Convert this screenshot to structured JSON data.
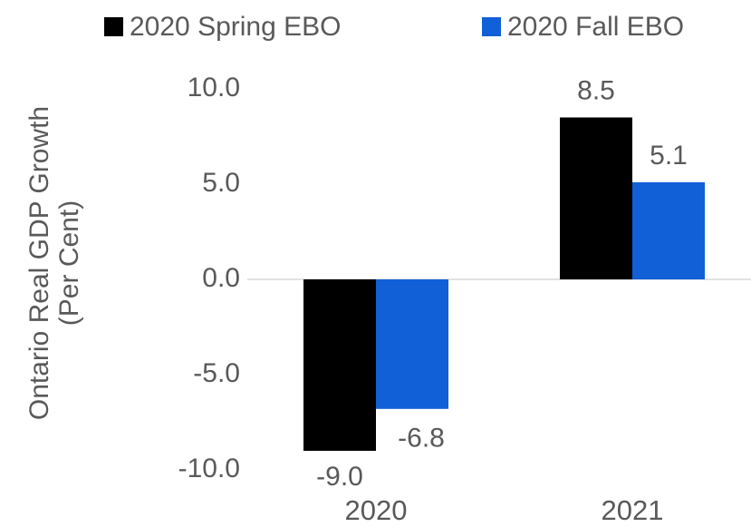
{
  "chart_data": {
    "type": "bar",
    "y_label": [
      "Ontario Real GDP Growth",
      "(Per Cent)"
    ],
    "categories": [
      "2020",
      "2021"
    ],
    "series": [
      {
        "name": "2020 Spring EBO",
        "color": "#000000",
        "values": [
          -9.0,
          8.5
        ],
        "value_labels": [
          "-9.0",
          "8.5"
        ]
      },
      {
        "name": "2020 Fall EBO",
        "color": "#1160d8",
        "values": [
          -6.8,
          5.1
        ],
        "value_labels": [
          "-6.8",
          "5.1"
        ]
      }
    ],
    "ylim": [
      -10,
      10
    ],
    "yticks": [
      {
        "value": -10,
        "label": "-10.0"
      },
      {
        "value": -5,
        "label": "-5.0"
      },
      {
        "value": 0,
        "label": "0.0"
      },
      {
        "value": 5,
        "label": "5.0"
      },
      {
        "value": 10,
        "label": "10.0"
      }
    ],
    "legend": "top"
  }
}
